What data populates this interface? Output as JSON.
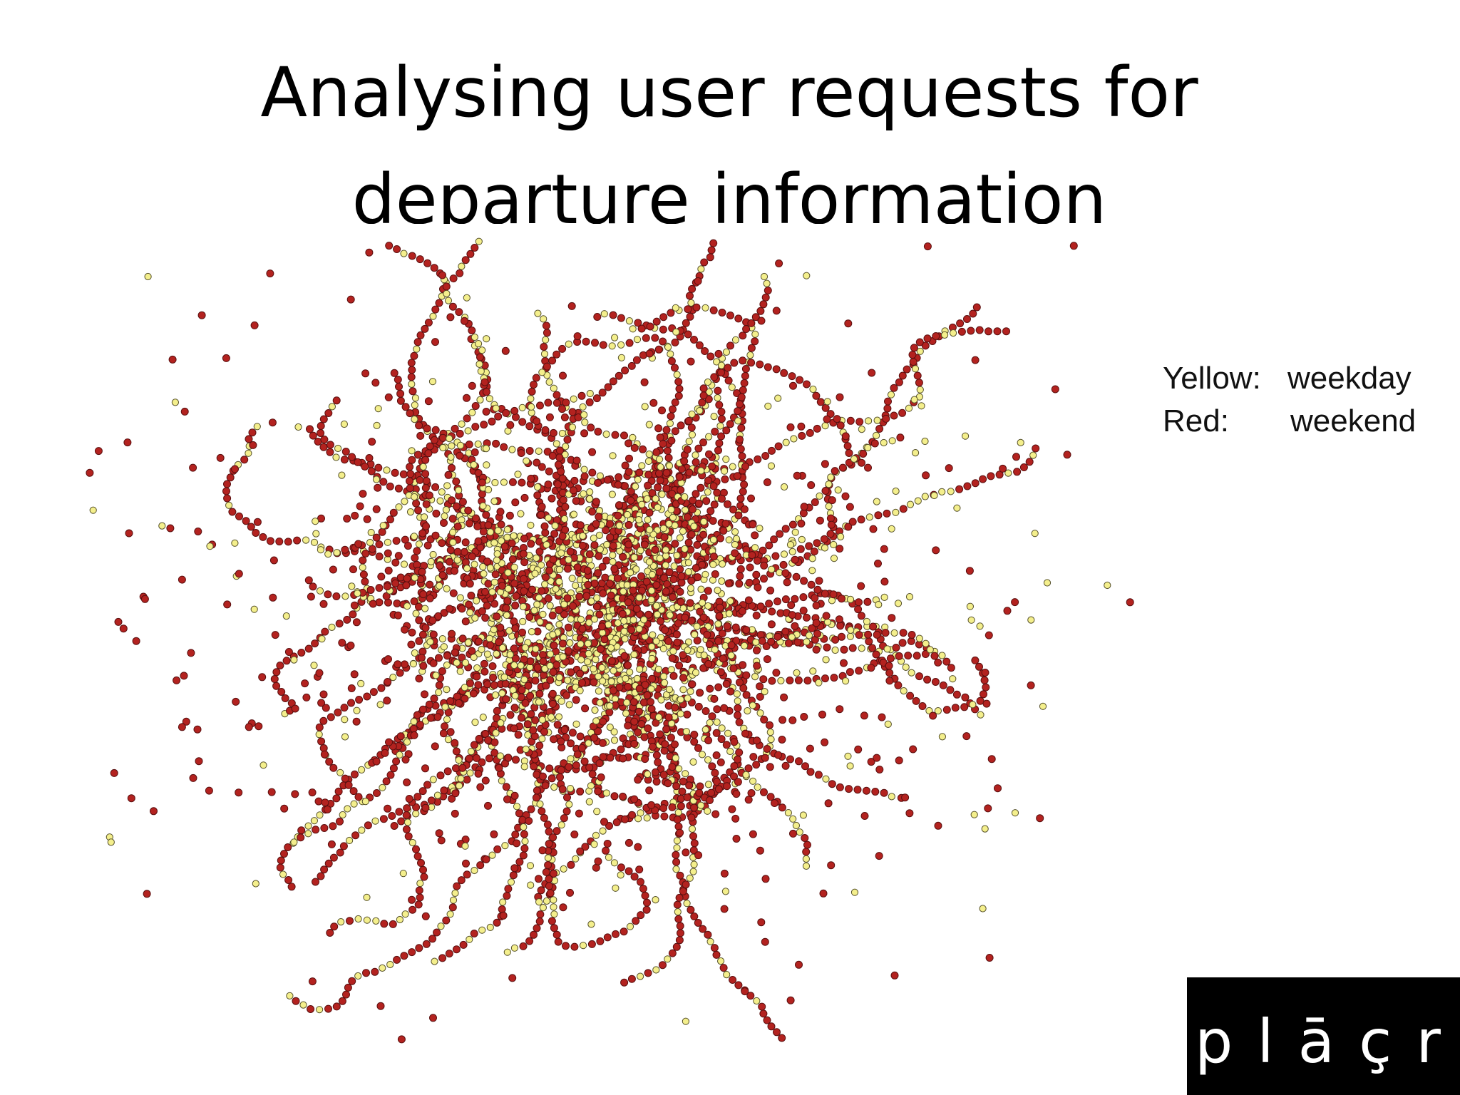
{
  "title": [
    "Analysing user requests for",
    "departure information"
  ],
  "legend": [
    {
      "label": "Yellow:",
      "text": "weekday"
    },
    {
      "label": "Red:",
      "text": "weekend"
    }
  ],
  "logo": "plāçr"
}
